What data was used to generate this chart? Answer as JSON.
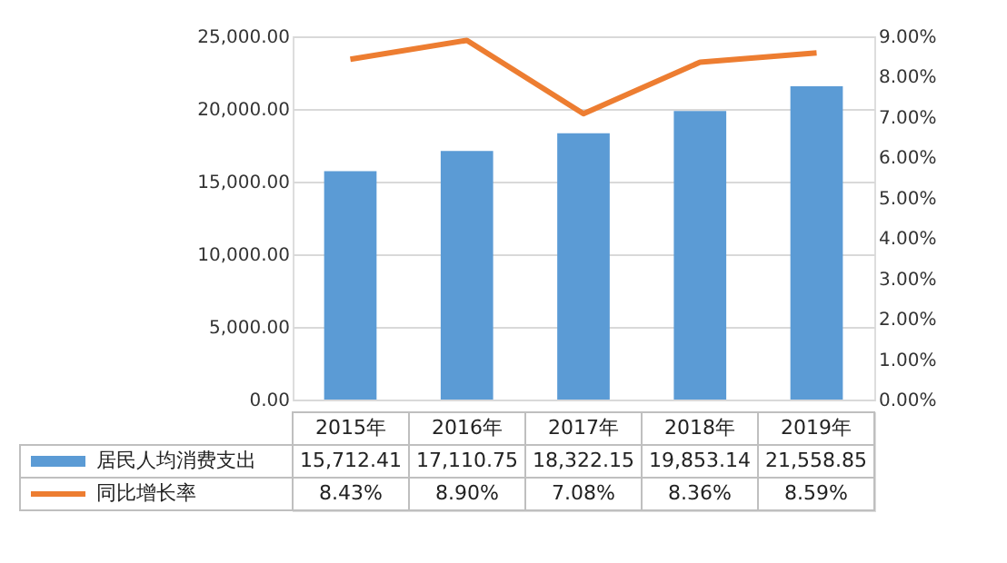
{
  "chart_data": {
    "type": "bar",
    "categories": [
      "2015年",
      "2016年",
      "2017年",
      "2018年",
      "2019年"
    ],
    "series": [
      {
        "name": "居民人均消费支出",
        "color": "#5b9bd5",
        "values": [
          15712.41,
          17110.75,
          18322.15,
          19853.14,
          21558.85
        ],
        "value_labels": [
          "15,712.41",
          "17,110.75",
          "18,322.15",
          "19,853.14",
          "21,558.85"
        ]
      },
      {
        "name": "同比增长率",
        "type": "line",
        "axis": "y2",
        "color": "#ed7d31",
        "values": [
          8.43,
          8.9,
          7.08,
          8.36,
          8.59
        ],
        "value_labels": [
          "8.43%",
          "8.90%",
          "7.08%",
          "8.36%",
          "8.59%"
        ]
      }
    ],
    "ylim": [
      0,
      25000
    ],
    "yticks": [
      {
        "value": 0,
        "label": "0.00"
      },
      {
        "value": 5000,
        "label": "5,000.00"
      },
      {
        "value": 10000,
        "label": "10,000.00"
      },
      {
        "value": 15000,
        "label": "15,000.00"
      },
      {
        "value": 20000,
        "label": "20,000.00"
      },
      {
        "value": 25000,
        "label": "25,000.00"
      }
    ],
    "y2lim": [
      0,
      9
    ],
    "y2ticks": [
      {
        "value": 0,
        "label": "0.00%"
      },
      {
        "value": 1,
        "label": "1.00%"
      },
      {
        "value": 2,
        "label": "2.00%"
      },
      {
        "value": 3,
        "label": "3.00%"
      },
      {
        "value": 4,
        "label": "4.00%"
      },
      {
        "value": 5,
        "label": "5.00%"
      },
      {
        "value": 6,
        "label": "6.00%"
      },
      {
        "value": 7,
        "label": "7.00%"
      },
      {
        "value": 8,
        "label": "8.00%"
      },
      {
        "value": 9,
        "label": "9.00%"
      }
    ],
    "grid": "y",
    "legend": "bottom"
  }
}
